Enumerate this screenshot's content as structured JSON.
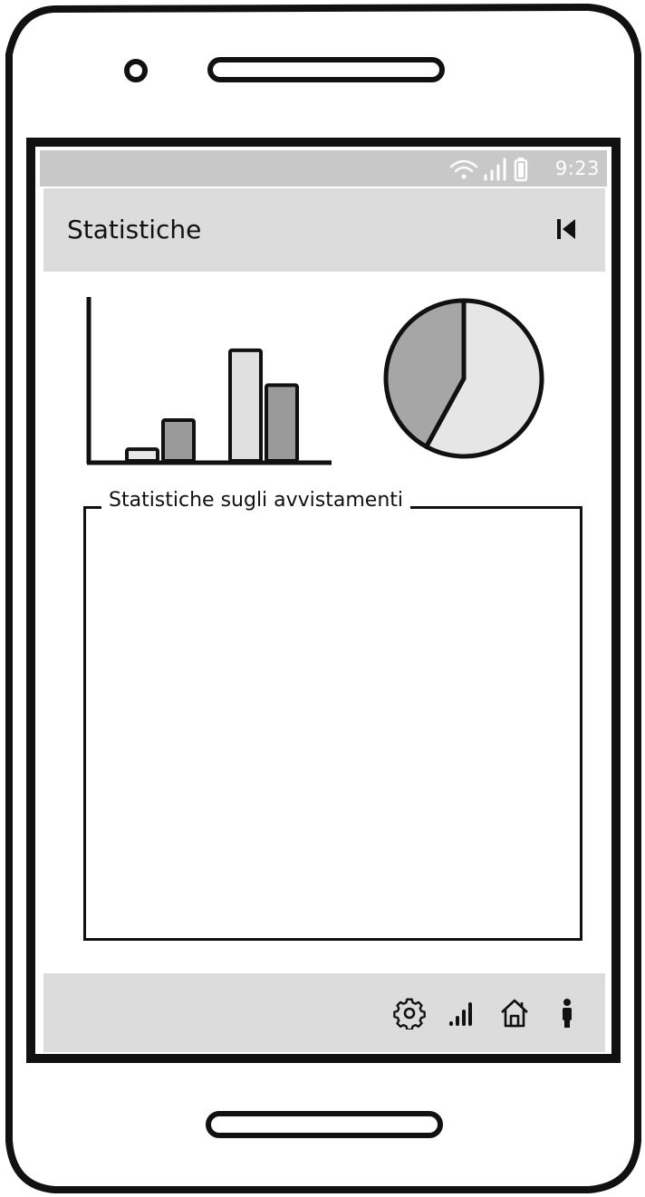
{
  "status_bar": {
    "time": "9:23",
    "icons": [
      "wifi-icon",
      "signal-icon",
      "battery-icon"
    ]
  },
  "app_bar": {
    "title": "Statistiche",
    "back_icon": "skip-back-icon"
  },
  "charts": [
    {
      "chart_data": {
        "type": "bar",
        "categories": [
          "",
          "",
          "",
          ""
        ],
        "values": [
          2,
          7,
          19,
          13
        ],
        "ylim": [
          0,
          28
        ],
        "grid": false,
        "colors": [
          "#e8e8e8",
          "#9a9a9a",
          "#e0e0e0",
          "#9a9a9a"
        ]
      }
    },
    {
      "chart_data": {
        "type": "pie",
        "values": [
          58,
          42
        ],
        "colors": [
          "#e6e6e6",
          "#a6a6a6"
        ]
      }
    }
  ],
  "statistics_panel": {
    "legend": "Statistiche sugli avvistamenti"
  },
  "bottom_nav": {
    "items": [
      "gear-icon",
      "signal-bars-icon",
      "home-icon",
      "info-icon"
    ]
  },
  "colors": {
    "frame": "#111111",
    "status_bar": "#c8c8c8",
    "toolbar": "#dcdcdc"
  }
}
